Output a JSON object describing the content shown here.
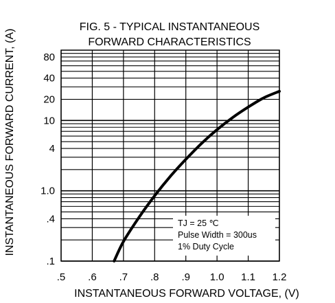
{
  "chart_data": {
    "type": "line",
    "title_lines": [
      "FIG. 5 - TYPICAL INSTANTANEOUS",
      "FORWARD CHARACTERISTICS"
    ],
    "xlabel": "INSTANTANEOUS FORWARD VOLTAGE, (V)",
    "ylabel": "INSTANTANEOUS FORWARD CURRENT, (A)",
    "x_scale": "linear",
    "y_scale": "log",
    "xlim": [
      0.5,
      1.2
    ],
    "ylim": [
      0.1,
      100
    ],
    "grid": true,
    "x_ticks": [
      {
        "value": 0.5,
        "label": ".5"
      },
      {
        "value": 0.6,
        "label": ".6"
      },
      {
        "value": 0.7,
        "label": ".7"
      },
      {
        "value": 0.8,
        "label": ".8"
      },
      {
        "value": 0.9,
        "label": ".9"
      },
      {
        "value": 1.0,
        "label": "1.0"
      },
      {
        "value": 1.1,
        "label": "1.1"
      },
      {
        "value": 1.2,
        "label": "1.2"
      }
    ],
    "y_ticks": [
      {
        "value": 0.1,
        "label": ".1"
      },
      {
        "value": 0.4,
        "label": ".4"
      },
      {
        "value": 1,
        "label": "1.0"
      },
      {
        "value": 4,
        "label": "4"
      },
      {
        "value": 10,
        "label": "10"
      },
      {
        "value": 20,
        "label": "20"
      },
      {
        "value": 40,
        "label": "40"
      },
      {
        "value": 80,
        "label": "80"
      }
    ],
    "annotation_lines": [
      "TJ = 25 ℃",
      "Pulse Width = 300us",
      "1% Duty Cycle"
    ],
    "series": [
      {
        "x": [
          0.67,
          0.7,
          0.75,
          0.8,
          0.85,
          0.9,
          0.95,
          1.0,
          1.05,
          1.1,
          1.15,
          1.2
        ],
        "y": [
          0.1,
          0.19,
          0.42,
          0.85,
          1.6,
          2.8,
          4.7,
          7.4,
          11,
          15.5,
          21,
          26
        ]
      }
    ]
  }
}
